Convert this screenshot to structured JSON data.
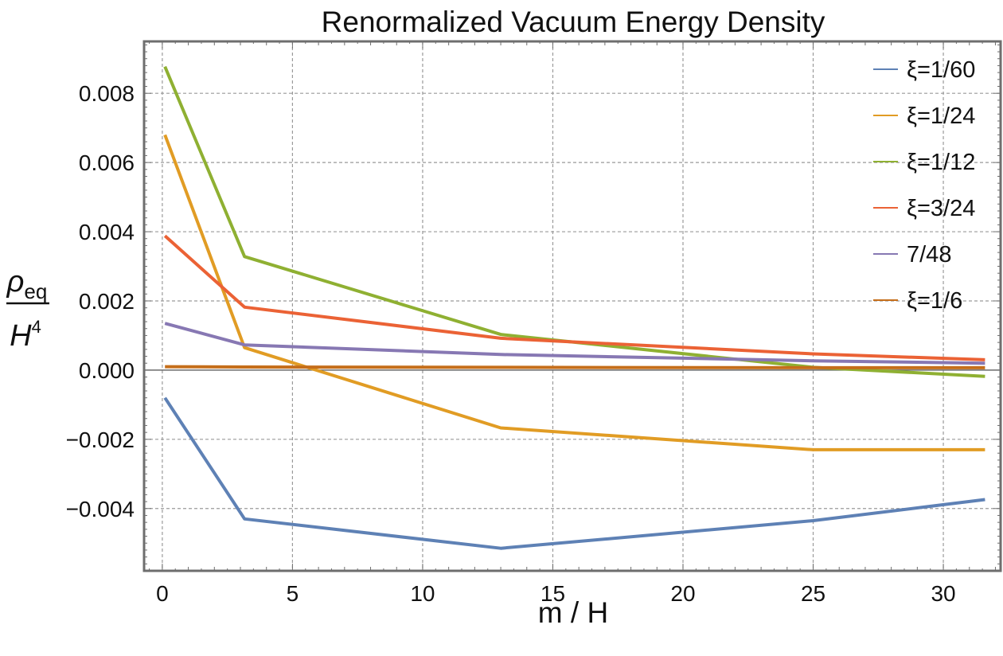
{
  "chart_data": {
    "type": "line",
    "title": "Renormalized Vacuum Energy Density",
    "xlabel": "m / H",
    "ylabel": {
      "numerator_symbol": "ρ",
      "numerator_subscript": "eq",
      "denominator_symbol": "H",
      "denominator_superscript": "4"
    },
    "xlim": [
      -0.7,
      32.2
    ],
    "ylim": [
      -0.0058,
      0.0095
    ],
    "x_ticks": [
      0,
      5,
      10,
      15,
      20,
      25,
      30
    ],
    "x_tick_labels": [
      "0",
      "5",
      "10",
      "15",
      "20",
      "25",
      "30"
    ],
    "y_ticks": [
      -0.004,
      -0.002,
      0.0,
      0.002,
      0.004,
      0.006,
      0.008
    ],
    "y_tick_labels": [
      "−0.004",
      "−0.002",
      "0.000",
      "0.002",
      "0.004",
      "0.006",
      "0.008"
    ],
    "grid": true,
    "legend_position": "top-right",
    "series": [
      {
        "name": "ξ=1/60",
        "color": "#5e81b5",
        "x": [
          0.1,
          3.16,
          13,
          25,
          31.6
        ],
        "y": [
          -0.0008,
          -0.0043,
          -0.00515,
          -0.00435,
          -0.00374
        ]
      },
      {
        "name": "ξ=1/24",
        "color": "#e19c24",
        "x": [
          0.1,
          3.16,
          13,
          25,
          31.6
        ],
        "y": [
          0.0068,
          0.00065,
          -0.00167,
          -0.0023,
          -0.0023
        ]
      },
      {
        "name": "ξ=1/12",
        "color": "#8fb032",
        "x": [
          0.1,
          3.16,
          13,
          25,
          31.6
        ],
        "y": [
          0.00877,
          0.00328,
          0.00103,
          8e-05,
          -0.00018
        ]
      },
      {
        "name": "ξ=3/24",
        "color": "#eb6235",
        "x": [
          0.1,
          3.16,
          13,
          25,
          31.6
        ],
        "y": [
          0.00388,
          0.00182,
          0.00092,
          0.00047,
          0.0003
        ]
      },
      {
        "name": "7/48",
        "color": "#8778b3",
        "x": [
          0.1,
          3.16,
          13,
          25,
          31.6
        ],
        "y": [
          0.00135,
          0.00073,
          0.00045,
          0.00027,
          0.0002
        ]
      },
      {
        "name": "ξ=1/6",
        "color": "#c56e1a",
        "x": [
          0.1,
          3.16,
          13,
          25,
          31.6
        ],
        "y": [
          0.0001,
          9e-05,
          8e-05,
          7e-05,
          7e-05
        ]
      }
    ]
  }
}
